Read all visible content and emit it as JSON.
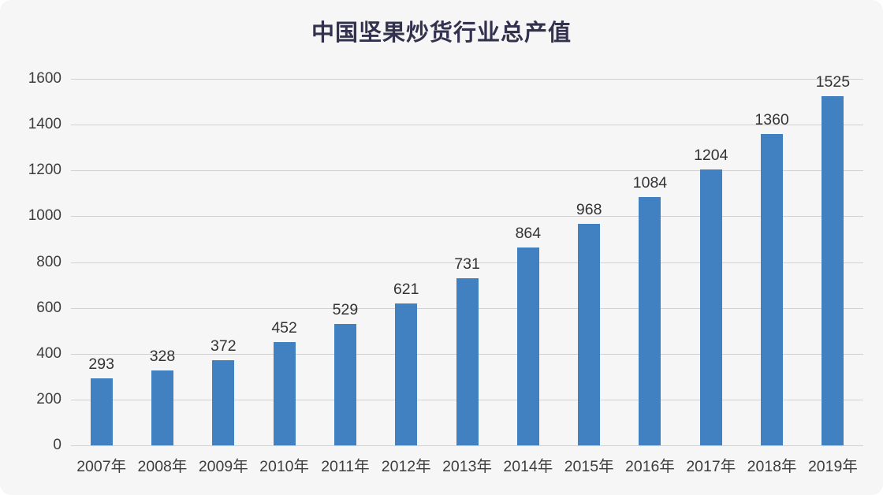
{
  "page": {
    "background_color": "#f7f6f6"
  },
  "chart_data": {
    "type": "bar",
    "title": "中国坚果炒货行业总产值",
    "categories": [
      "2007年",
      "2008年",
      "2009年",
      "2010年",
      "2011年",
      "2012年",
      "2013年",
      "2014年",
      "2015年",
      "2016年",
      "2017年",
      "2018年",
      "2019年"
    ],
    "values": [
      293,
      328,
      372,
      452,
      529,
      621,
      731,
      864,
      968,
      1084,
      1204,
      1360,
      1525
    ],
    "xlabel": "",
    "ylabel": "",
    "ylim": [
      0,
      1600
    ],
    "ytick_step": 200,
    "grid": true,
    "legend": "none",
    "bar_color": "#4181c2",
    "gridline_color": "#d2d0d0",
    "tick_label_color": "#3d3d3d",
    "value_label_color": "#333333",
    "title_color": "#32324e"
  }
}
